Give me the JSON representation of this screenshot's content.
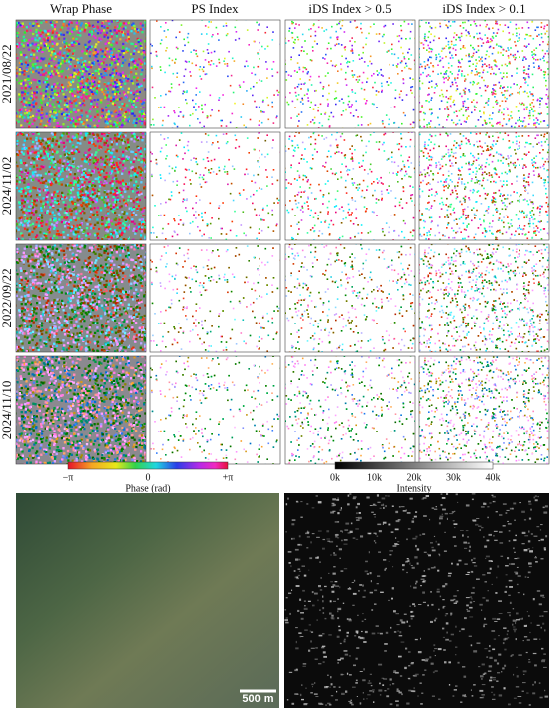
{
  "header": {
    "columns": [
      "Wrap Phase",
      "PS Index",
      "iDS Index > 0.5",
      "iDS Index > 0.1"
    ]
  },
  "rows": {
    "labels": [
      "2021/08/22",
      "2024/11/02",
      "2022/09/22",
      "2024/11/10"
    ]
  },
  "colorbars": {
    "phase": {
      "label": "Phase (rad)",
      "ticks": [
        "−π",
        "0",
        "+π"
      ]
    },
    "intensity": {
      "label": "Intensity",
      "ticks": [
        "0k",
        "10k",
        "20k",
        "30k",
        "40k"
      ]
    }
  },
  "scale_bar": "500 m"
}
